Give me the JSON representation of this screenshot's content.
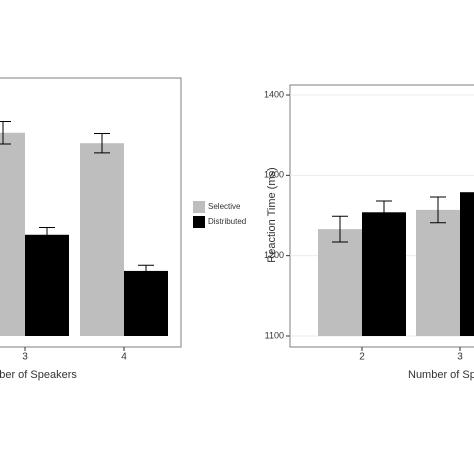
{
  "chart_data": [
    {
      "type": "bar",
      "x_label": "Number of Speakers",
      "categories": [
        "3",
        "4"
      ],
      "ylim": [
        1100,
        1400
      ],
      "series": [
        {
          "name": "Selective",
          "color": "#bebebe",
          "values": [
            1353,
            1340
          ],
          "errors": [
            14,
            12
          ]
        },
        {
          "name": "Distributed",
          "color": "#000000",
          "values": [
            1226,
            1181
          ],
          "errors": [
            9,
            7
          ]
        }
      ]
    },
    {
      "type": "bar",
      "x_label": "Number of Speakers",
      "y_label": "Reaction Time (ms)",
      "categories": [
        "2",
        "3"
      ],
      "ylim": [
        1100,
        1400
      ],
      "yticks": [
        1100,
        1200,
        1300,
        1400
      ],
      "grid": true,
      "series": [
        {
          "color": "#bebebe",
          "values": [
            1233,
            1257
          ],
          "errors": [
            16,
            16
          ]
        },
        {
          "color": "#000000",
          "values": [
            1254,
            1279
          ],
          "errors": [
            14,
            10
          ]
        }
      ]
    }
  ]
}
